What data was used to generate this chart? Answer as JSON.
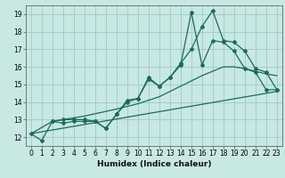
{
  "background_color": "#c8e8e4",
  "grid_color": "#a0c8c4",
  "line_color": "#1a6b60",
  "xlabel": "Humidex (Indice chaleur)",
  "xlim": [
    -0.5,
    23.5
  ],
  "ylim": [
    11.5,
    19.5
  ],
  "yticks": [
    12,
    13,
    14,
    15,
    16,
    17,
    18,
    19
  ],
  "xticks": [
    0,
    1,
    2,
    3,
    4,
    5,
    6,
    7,
    8,
    9,
    10,
    11,
    12,
    13,
    14,
    15,
    16,
    17,
    18,
    19,
    20,
    21,
    22,
    23
  ],
  "line_main": {
    "x": [
      0,
      1,
      2,
      3,
      4,
      5,
      6,
      7,
      8,
      9,
      10,
      11,
      12,
      13,
      14,
      15,
      16,
      17,
      18,
      19,
      20,
      21,
      22,
      23
    ],
    "y": [
      12.2,
      11.8,
      12.9,
      12.8,
      12.9,
      12.9,
      12.9,
      12.5,
      13.3,
      14.1,
      14.2,
      15.4,
      14.9,
      15.4,
      16.2,
      17.0,
      18.3,
      19.2,
      17.5,
      17.4,
      16.9,
      15.9,
      15.7,
      14.7
    ]
  },
  "line_peak": {
    "x": [
      2,
      3,
      4,
      5,
      6,
      7,
      8,
      9,
      10,
      11,
      12,
      13,
      14,
      15,
      16,
      17,
      18,
      19,
      20,
      21,
      22,
      23
    ],
    "y": [
      12.9,
      13.0,
      13.0,
      13.0,
      12.9,
      12.5,
      13.3,
      14.0,
      14.2,
      15.3,
      14.9,
      15.4,
      16.1,
      19.1,
      16.1,
      17.5,
      17.4,
      16.9,
      15.9,
      15.7,
      14.7,
      14.7
    ]
  },
  "line_lower": {
    "x": [
      0,
      23
    ],
    "y": [
      12.2,
      14.6
    ]
  },
  "line_upper": {
    "x": [
      0,
      2,
      5,
      8,
      10,
      12,
      14,
      16,
      18,
      19,
      20,
      21,
      22,
      23
    ],
    "y": [
      12.2,
      12.9,
      13.2,
      13.6,
      13.9,
      14.3,
      14.9,
      15.5,
      16.0,
      16.0,
      15.9,
      15.75,
      15.6,
      15.5
    ]
  }
}
